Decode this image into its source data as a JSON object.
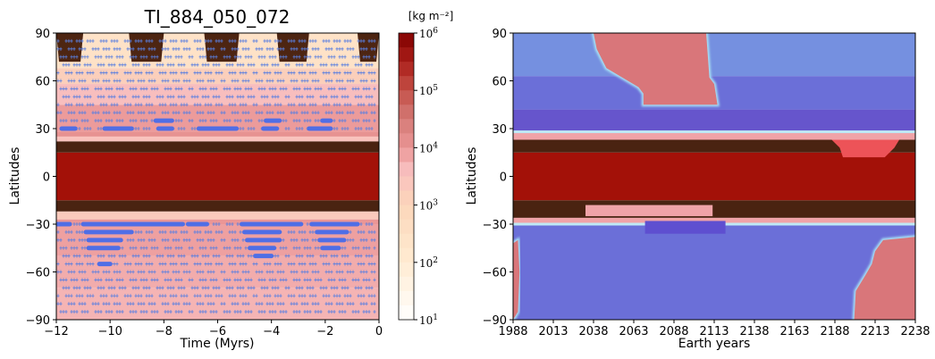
{
  "chart_data": [
    {
      "type": "heatmap",
      "title": "TI_884_050_072",
      "xlabel": "Time (Myrs)",
      "ylabel": "Latitudes",
      "xlim": [
        -12,
        0
      ],
      "ylim": [
        -90,
        90
      ],
      "xticks": [
        "−12",
        "−10",
        "−8",
        "−6",
        "−4",
        "−2",
        "0"
      ],
      "yticks": [
        "90",
        "60",
        "30",
        "0",
        "−30",
        "−60",
        "−90"
      ],
      "colorbar": {
        "label": "[kg m⁻²]",
        "scale": "log",
        "range": [
          10,
          1000000
        ],
        "ticks": [
          {
            "base": "10",
            "exp": "6"
          },
          {
            "base": "10",
            "exp": "5"
          },
          {
            "base": "10",
            "exp": "4"
          },
          {
            "base": "10",
            "exp": "3"
          },
          {
            "base": "10",
            "exp": "2"
          },
          {
            "base": "10",
            "exp": "1"
          }
        ]
      },
      "bands": [
        {
          "lat": [
            -90,
            -70
          ],
          "kg_m2": 5000
        },
        {
          "lat": [
            -70,
            -50
          ],
          "kg_m2": 6000
        },
        {
          "lat": [
            -50,
            -30
          ],
          "kg_m2": 8000
        },
        {
          "lat": [
            -30,
            -27
          ],
          "kg_m2": 10000
        },
        {
          "lat": [
            -27,
            -22
          ],
          "kg_m2": 2000
        },
        {
          "lat": [
            -22,
            -15
          ],
          "kg_m2": 1000000
        },
        {
          "lat": [
            -15,
            15
          ],
          "kg_m2": 500000
        },
        {
          "lat": [
            15,
            22
          ],
          "kg_m2": 1000000
        },
        {
          "lat": [
            22,
            25
          ],
          "kg_m2": 3000
        },
        {
          "lat": [
            25,
            28
          ],
          "kg_m2": 12000
        },
        {
          "lat": [
            28,
            45
          ],
          "kg_m2": 9000
        },
        {
          "lat": [
            45,
            58
          ],
          "kg_m2": 4000
        },
        {
          "lat": [
            58,
            68
          ],
          "kg_m2": 1500
        },
        {
          "lat": [
            68,
            90
          ],
          "kg_m2": 300
        }
      ],
      "dark_caps_time": [
        [
          -12,
          -11
        ],
        [
          -9.3,
          -8
        ],
        [
          -6.5,
          -5.2
        ],
        [
          -3.8,
          -2.6
        ],
        [
          -0.8,
          0
        ]
      ],
      "cross_rows_lat": [
        85,
        80,
        75,
        70,
        65,
        60,
        55,
        50,
        45,
        40,
        35,
        30,
        -30,
        -35,
        -40,
        -45,
        -50,
        -55,
        -60,
        -65,
        -70,
        -75,
        -80,
        -85
      ],
      "thick_segments": [
        {
          "lat": 30,
          "t": [
            [
              -11.8,
              -11.3
            ],
            [
              -10.2,
              -9.2
            ],
            [
              -8.2,
              -7.7
            ],
            [
              -6.7,
              -5.3
            ],
            [
              -4.3,
              -3.8
            ],
            [
              -2.6,
              -1.8
            ]
          ]
        },
        {
          "lat": 35,
          "t": [
            [
              -8.3,
              -7.7
            ],
            [
              -4.2,
              -3.7
            ],
            [
              -2.1,
              -1.8
            ]
          ]
        },
        {
          "lat": -30,
          "t": [
            [
              -12,
              -11.5
            ],
            [
              -11,
              -7.3
            ],
            [
              -7.1,
              -6.4
            ],
            [
              -5.1,
              -2.9
            ],
            [
              -2.5,
              -0.8
            ]
          ]
        },
        {
          "lat": -35,
          "t": [
            [
              -10.9,
              -9.2
            ],
            [
              -5.0,
              -3.7
            ],
            [
              -2.3,
              -1.2
            ]
          ]
        },
        {
          "lat": -40,
          "t": [
            [
              -10.8,
              -9.6
            ],
            [
              -4.9,
              -3.7
            ],
            [
              -2.2,
              -1.3
            ]
          ]
        },
        {
          "lat": -45,
          "t": [
            [
              -10.8,
              -9.7
            ],
            [
              -4.8,
              -3.9
            ],
            [
              -2.1,
              -1.5
            ]
          ]
        },
        {
          "lat": -50,
          "t": [
            [
              -4.6,
              -4.0
            ]
          ]
        },
        {
          "lat": -55,
          "t": [
            [
              -10.4,
              -10.0
            ]
          ]
        }
      ]
    },
    {
      "type": "heatmap",
      "xlabel": "Earth years",
      "ylabel": "Latitudes",
      "xlim": [
        1988,
        2238
      ],
      "ylim": [
        -90,
        90
      ],
      "xticks": [
        "1988",
        "2013",
        "2038",
        "2063",
        "2088",
        "2113",
        "2138",
        "2163",
        "2188",
        "2213",
        "2238"
      ],
      "yticks": [
        "90",
        "60",
        "30",
        "0",
        "−30",
        "−60",
        "−90"
      ],
      "bands": [
        {
          "lat": [
            -90,
            -30
          ],
          "class": "blue-mid"
        },
        {
          "lat": [
            -30,
            -26
          ],
          "class": "pink"
        },
        {
          "lat": [
            -26,
            -15
          ],
          "class": "dark-brown"
        },
        {
          "lat": [
            -15,
            15
          ],
          "class": "ice-red"
        },
        {
          "lat": [
            15,
            23
          ],
          "class": "dark-brown"
        },
        {
          "lat": [
            23,
            28
          ],
          "class": "pink"
        },
        {
          "lat": [
            28,
            42
          ],
          "class": "blue-deep"
        },
        {
          "lat": [
            42,
            63
          ],
          "class": "blue-mid"
        },
        {
          "lat": [
            63,
            90
          ],
          "class": "blue-light"
        }
      ],
      "patches": [
        {
          "shape": "upper-red",
          "years": [
            2038,
            2118
          ],
          "lat": [
            45,
            90
          ]
        },
        {
          "shape": "south-left-red",
          "years": [
            1988,
            1992
          ],
          "lat": [
            -90,
            -40
          ]
        },
        {
          "shape": "south-right-red",
          "years": [
            2200,
            2238
          ],
          "lat": [
            -90,
            -40
          ]
        },
        {
          "shape": "north-notch-red",
          "years": [
            2190,
            2220
          ],
          "lat": [
            12,
            23
          ]
        },
        {
          "shape": "mid-blue",
          "years": [
            2070,
            2120
          ],
          "lat": [
            -35,
            -28
          ]
        }
      ]
    }
  ]
}
